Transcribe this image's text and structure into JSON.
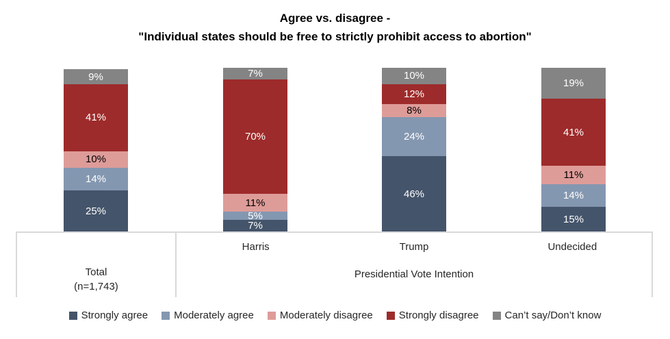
{
  "title": {
    "line1": "Agree vs. disagree -",
    "line2": "\"Individual states should be free to strictly prohibit access to abortion\""
  },
  "axis": {
    "total_line1": "Total",
    "total_line2": "(n=1,743)",
    "group_items": [
      "Harris",
      "Trump",
      "Undecided"
    ],
    "group_label": "Presidential Vote Intention"
  },
  "chart_data": {
    "type": "bar",
    "stacked": true,
    "orientation": "vertical",
    "title": "Agree vs. disagree - \"Individual states should be free to strictly prohibit access to abortion\"",
    "categories": [
      "Total (n=1,743)",
      "Harris",
      "Trump",
      "Undecided"
    ],
    "category_group_label": "Presidential Vote Intention",
    "series": [
      {
        "name": "Strongly agree",
        "color": "#44546A",
        "label_color": "#FFFFFF",
        "values": [
          25,
          7,
          46,
          15
        ]
      },
      {
        "name": "Moderately agree",
        "color": "#8497B0",
        "label_color": "#FFFFFF",
        "values": [
          14,
          5,
          24,
          14
        ]
      },
      {
        "name": "Moderately disagree",
        "color": "#DE9C99",
        "label_color": "#000000",
        "values": [
          10,
          11,
          8,
          11
        ]
      },
      {
        "name": "Strongly disagree",
        "color": "#9E2B2B",
        "label_color": "#FFFFFF",
        "values": [
          41,
          70,
          12,
          41
        ]
      },
      {
        "name": "Can’t say/Don’t know",
        "color": "#848484",
        "label_color": "#FFFFFF",
        "values": [
          9,
          7,
          10,
          19
        ]
      }
    ],
    "value_suffix": "%",
    "ylim": [
      0,
      100
    ],
    "gridlines": false,
    "y_axis_visible": false,
    "legend_position": "bottom",
    "axis_line_color": "#D9D9D9"
  }
}
